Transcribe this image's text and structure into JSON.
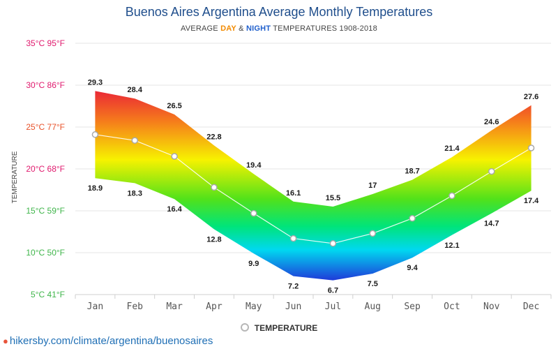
{
  "header": {
    "title": "Buenos Aires Argentina Average Monthly Temperatures",
    "subtitle_prefix": "AVERAGE ",
    "subtitle_day": "DAY",
    "subtitle_amp": " & ",
    "subtitle_night": "NIGHT",
    "subtitle_suffix": " TEMPERATURES 1908-2018"
  },
  "legend": {
    "label": "TEMPERATURE"
  },
  "footer": {
    "source_text": "hikersby.com/climate/argentina/buenosaires"
  },
  "colors": {
    "title": "#1f4e8c",
    "day": "#f28a00",
    "night": "#1f5fcc",
    "link": "#1f6fb5"
  },
  "chart_data": {
    "type": "area",
    "title": "Buenos Aires Argentina Average Monthly Temperatures",
    "subtitle": "AVERAGE DAY & NIGHT TEMPERATURES 1908-2018",
    "ylabel": "TEMPERATURE",
    "xlabel": "",
    "ylim": [
      5,
      35
    ],
    "grid": true,
    "legend_position": "bottom-center",
    "categories": [
      "Jan",
      "Feb",
      "Mar",
      "Apr",
      "May",
      "Jun",
      "Jul",
      "Aug",
      "Sep",
      "Oct",
      "Nov",
      "Dec"
    ],
    "y_ticks": [
      {
        "value": 35,
        "label": "35°C 95°F",
        "color": "#e0196d"
      },
      {
        "value": 30,
        "label": "30°C 86°F",
        "color": "#e0196d"
      },
      {
        "value": 25,
        "label": "25°C 77°F",
        "color": "#e8522a"
      },
      {
        "value": 20,
        "label": "20°C 68°F",
        "color": "#e0196d"
      },
      {
        "value": 15,
        "label": "15°C 59°F",
        "color": "#3fb54a"
      },
      {
        "value": 10,
        "label": "10°C 50°F",
        "color": "#3fb54a"
      },
      {
        "value": 5,
        "label": "5°C 41°F",
        "color": "#3fb54a"
      }
    ],
    "series": [
      {
        "name": "Day",
        "values": [
          29.3,
          28.4,
          26.5,
          22.8,
          19.4,
          16.1,
          15.5,
          17,
          18.7,
          21.4,
          24.6,
          27.6
        ]
      },
      {
        "name": "Night",
        "values": [
          18.9,
          18.3,
          16.4,
          12.8,
          9.9,
          7.2,
          6.7,
          7.5,
          9.4,
          12.1,
          14.7,
          17.4
        ]
      },
      {
        "name": "TEMPERATURE",
        "values": [
          24.1,
          23.4,
          21.5,
          17.8,
          14.7,
          11.7,
          11.1,
          12.3,
          14.1,
          16.8,
          19.7,
          22.5
        ]
      }
    ]
  }
}
